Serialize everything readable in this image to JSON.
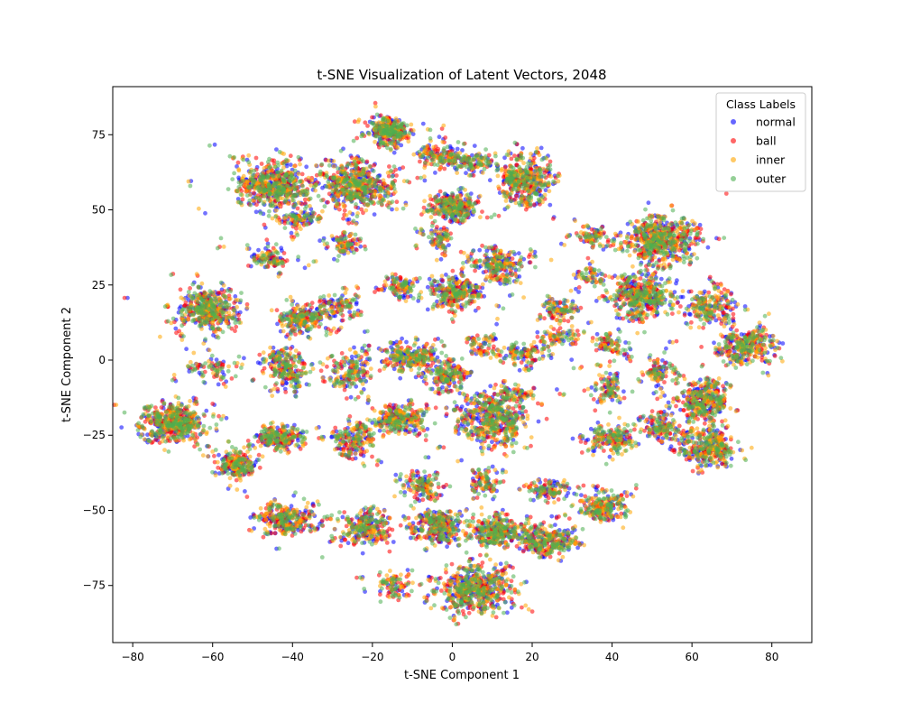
{
  "chart_data": {
    "type": "scatter",
    "title": "t-SNE Visualization of Latent Vectors, 2048",
    "xlabel": "t-SNE Component 1",
    "ylabel": "t-SNE Component 2",
    "xlim": [
      -85,
      90
    ],
    "ylim": [
      -94,
      91
    ],
    "xticks": [
      -80,
      -60,
      -40,
      -20,
      0,
      20,
      40,
      60,
      80
    ],
    "yticks": [
      -75,
      -50,
      -25,
      0,
      25,
      50,
      75
    ],
    "grid": false,
    "legend": {
      "title": "Class Labels",
      "position": "top-right"
    },
    "series": [
      {
        "name": "normal",
        "color": "#0000ff"
      },
      {
        "name": "ball",
        "color": "#ff0000"
      },
      {
        "name": "inner",
        "color": "#ffa500"
      },
      {
        "name": "outer",
        "color": "#4caf50"
      }
    ],
    "clusters": [
      {
        "cx": -16,
        "cy": 76,
        "sx": 2.6,
        "sy": 2.0,
        "n": 180
      },
      {
        "cx": -45,
        "cy": 58,
        "sx": 4.5,
        "sy": 4.0,
        "n": 320
      },
      {
        "cx": -24,
        "cy": 58,
        "sx": 4.5,
        "sy": 4.0,
        "n": 300
      },
      {
        "cx": -38,
        "cy": 47,
        "sx": 2.2,
        "sy": 1.5,
        "n": 50
      },
      {
        "cx": -4,
        "cy": 68,
        "sx": 3.0,
        "sy": 2.0,
        "n": 90
      },
      {
        "cx": 5,
        "cy": 65,
        "sx": 2.5,
        "sy": 1.5,
        "n": 50
      },
      {
        "cx": 0,
        "cy": 51,
        "sx": 2.8,
        "sy": 2.3,
        "n": 150
      },
      {
        "cx": 18,
        "cy": 60,
        "sx": 3.5,
        "sy": 4.0,
        "n": 240
      },
      {
        "cx": -27,
        "cy": 39,
        "sx": 2.0,
        "sy": 1.5,
        "n": 40
      },
      {
        "cx": -46,
        "cy": 34,
        "sx": 2.0,
        "sy": 2.0,
        "n": 55
      },
      {
        "cx": -61,
        "cy": 17,
        "sx": 3.5,
        "sy": 3.3,
        "n": 260
      },
      {
        "cx": -38,
        "cy": 14,
        "sx": 3.0,
        "sy": 2.3,
        "n": 130
      },
      {
        "cx": -28,
        "cy": 18,
        "sx": 2.5,
        "sy": 2.0,
        "n": 60
      },
      {
        "cx": -13,
        "cy": 24,
        "sx": 3.0,
        "sy": 1.5,
        "n": 60
      },
      {
        "cx": 1,
        "cy": 22,
        "sx": 3.5,
        "sy": 3.0,
        "n": 160
      },
      {
        "cx": 12,
        "cy": 32,
        "sx": 2.8,
        "sy": 3.0,
        "n": 120
      },
      {
        "cx": -42,
        "cy": -3,
        "sx": 2.5,
        "sy": 3.5,
        "n": 130
      },
      {
        "cx": -25,
        "cy": -4,
        "sx": 2.5,
        "sy": 3.5,
        "n": 100
      },
      {
        "cx": -11,
        "cy": 1,
        "sx": 3.2,
        "sy": 2.5,
        "n": 140
      },
      {
        "cx": -1,
        "cy": -5,
        "sx": 2.5,
        "sy": 2.5,
        "n": 100
      },
      {
        "cx": -60,
        "cy": -3,
        "sx": 2.5,
        "sy": 2.0,
        "n": 40
      },
      {
        "cx": 18,
        "cy": 2,
        "sx": 3.0,
        "sy": 1.5,
        "n": 60
      },
      {
        "cx": 26,
        "cy": 17,
        "sx": 2.0,
        "sy": 2.0,
        "n": 50
      },
      {
        "cx": 27,
        "cy": 8,
        "sx": 2.0,
        "sy": 1.5,
        "n": 40
      },
      {
        "cx": 10,
        "cy": -20,
        "sx": 4.0,
        "sy": 4.0,
        "n": 260
      },
      {
        "cx": -13,
        "cy": -20,
        "sx": 3.5,
        "sy": 2.5,
        "n": 150
      },
      {
        "cx": -25,
        "cy": -27,
        "sx": 2.5,
        "sy": 3.0,
        "n": 110
      },
      {
        "cx": -43,
        "cy": -26,
        "sx": 3.0,
        "sy": 2.0,
        "n": 130
      },
      {
        "cx": -70,
        "cy": -21,
        "sx": 4.0,
        "sy": 3.0,
        "n": 300
      },
      {
        "cx": -54,
        "cy": -35,
        "sx": 2.5,
        "sy": 2.3,
        "n": 130
      },
      {
        "cx": -8,
        "cy": -42,
        "sx": 2.5,
        "sy": 2.5,
        "n": 80
      },
      {
        "cx": 8,
        "cy": -40,
        "sx": 2.0,
        "sy": 2.0,
        "n": 40
      },
      {
        "cx": -41,
        "cy": -53,
        "sx": 3.5,
        "sy": 2.5,
        "n": 170
      },
      {
        "cx": -22,
        "cy": -56,
        "sx": 3.5,
        "sy": 2.8,
        "n": 150
      },
      {
        "cx": -4,
        "cy": -55,
        "sx": 3.0,
        "sy": 2.8,
        "n": 150
      },
      {
        "cx": 11,
        "cy": -57,
        "sx": 3.5,
        "sy": 2.5,
        "n": 170
      },
      {
        "cx": 24,
        "cy": -60,
        "sx": 4.0,
        "sy": 2.5,
        "n": 180
      },
      {
        "cx": 25,
        "cy": -43,
        "sx": 2.5,
        "sy": 1.5,
        "n": 60
      },
      {
        "cx": 38,
        "cy": -49,
        "sx": 3.0,
        "sy": 2.5,
        "n": 120
      },
      {
        "cx": 6,
        "cy": -76,
        "sx": 4.5,
        "sy": 4.0,
        "n": 320
      },
      {
        "cx": -14,
        "cy": -75,
        "sx": 2.0,
        "sy": 2.0,
        "n": 50
      },
      {
        "cx": 40,
        "cy": -26,
        "sx": 2.8,
        "sy": 2.5,
        "n": 100
      },
      {
        "cx": 52,
        "cy": 40,
        "sx": 4.5,
        "sy": 3.8,
        "n": 320
      },
      {
        "cx": 47,
        "cy": 21,
        "sx": 4.0,
        "sy": 3.5,
        "n": 260
      },
      {
        "cx": 65,
        "cy": 18,
        "sx": 3.0,
        "sy": 2.8,
        "n": 120
      },
      {
        "cx": 74,
        "cy": 5,
        "sx": 3.5,
        "sy": 3.5,
        "n": 180
      },
      {
        "cx": 63,
        "cy": -14,
        "sx": 3.2,
        "sy": 3.5,
        "n": 200
      },
      {
        "cx": 64,
        "cy": -29,
        "sx": 3.5,
        "sy": 3.0,
        "n": 200
      },
      {
        "cx": 52,
        "cy": -22,
        "sx": 3.0,
        "sy": 2.5,
        "n": 80
      },
      {
        "cx": 52,
        "cy": -4,
        "sx": 2.5,
        "sy": 2.5,
        "n": 60
      },
      {
        "cx": 39,
        "cy": -9,
        "sx": 2.0,
        "sy": 3.0,
        "n": 60
      },
      {
        "cx": 35,
        "cy": 40,
        "sx": 2.0,
        "sy": 2.0,
        "n": 40
      },
      {
        "cx": 35,
        "cy": 28,
        "sx": 2.0,
        "sy": 1.5,
        "n": 30
      },
      {
        "cx": 40,
        "cy": 5,
        "sx": 2.0,
        "sy": 2.0,
        "n": 40
      },
      {
        "cx": 15,
        "cy": -12,
        "sx": 3.0,
        "sy": 1.5,
        "n": 50
      },
      {
        "cx": -3,
        "cy": 40,
        "sx": 1.5,
        "sy": 2.0,
        "n": 30
      },
      {
        "cx": 7,
        "cy": 5,
        "sx": 2.0,
        "sy": 2.0,
        "n": 30
      }
    ],
    "noise_points": 320
  }
}
